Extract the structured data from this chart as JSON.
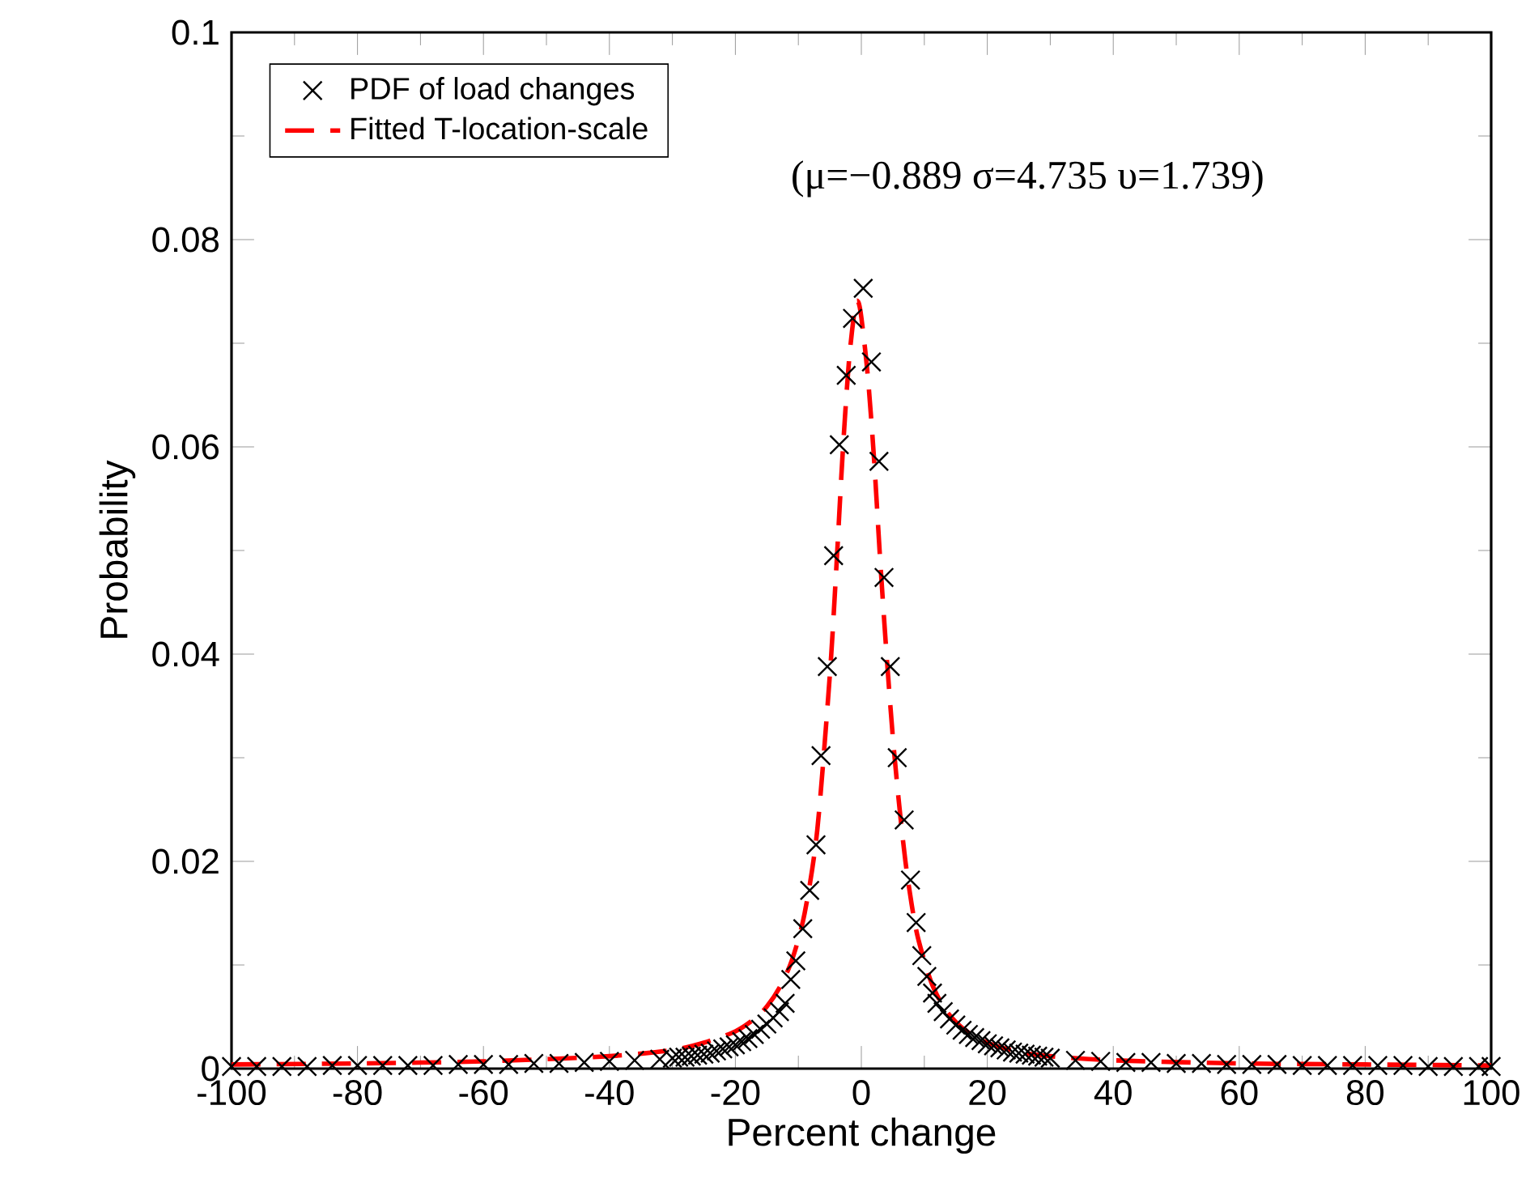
{
  "chart_data": {
    "type": "scatter",
    "xlabel": "Percent change",
    "ylabel": "Probability",
    "xlim": [
      -100,
      100
    ],
    "ylim": [
      0,
      0.1
    ],
    "xticks": [
      -100,
      -80,
      -60,
      -40,
      -20,
      0,
      20,
      40,
      60,
      80,
      100
    ],
    "yticks": [
      0,
      0.02,
      0.04,
      0.06,
      0.08,
      0.1
    ],
    "grid": false,
    "legend": "top left",
    "annotations": [
      "(μ=−0.889 σ=4.735 υ=1.739)"
    ],
    "series": [
      {
        "name": "PDF of load changes",
        "marker": "cross",
        "color": "#000000",
        "x": [
          -100,
          -96,
          -92,
          -88,
          -84,
          -80,
          -76,
          -72,
          -68,
          -64,
          -60,
          -56,
          -52,
          -48,
          -44,
          -40,
          -36,
          -32,
          -30,
          -29,
          -28,
          -27,
          -26,
          -25,
          -24,
          -23,
          -22,
          -21,
          -20,
          -19,
          -18,
          -17,
          -16,
          -15,
          -14,
          -13,
          -12.1,
          -11.2,
          -10.4,
          -9.3,
          -8.2,
          -7.2,
          -6.4,
          -5.4,
          -4.4,
          -3.5,
          -2.4,
          -1.4,
          0.3,
          1.6,
          2.8,
          3.6,
          4.6,
          5.7,
          6.8,
          7.8,
          8.7,
          9.6,
          10.4,
          11.3,
          12,
          13,
          14,
          15,
          16,
          17,
          18,
          19,
          20,
          21,
          22,
          23,
          24,
          25,
          26,
          27,
          28,
          29,
          30,
          34,
          38,
          42,
          46,
          50,
          54,
          58,
          62,
          66,
          70,
          74,
          78,
          82,
          86,
          90,
          94,
          98,
          100
        ],
        "values": [
          0.0002,
          0.0002,
          0.0002,
          0.0002,
          0.0003,
          0.0003,
          0.0003,
          0.0003,
          0.0003,
          0.0004,
          0.0004,
          0.0004,
          0.0005,
          0.0005,
          0.0006,
          0.0007,
          0.0008,
          0.0009,
          0.001,
          0.0011,
          0.0011,
          0.0012,
          0.0013,
          0.0014,
          0.0015,
          0.0017,
          0.0019,
          0.0021,
          0.0023,
          0.0026,
          0.0029,
          0.0033,
          0.0038,
          0.0043,
          0.0049,
          0.0055,
          0.0063,
          0.0086,
          0.0104,
          0.0135,
          0.0172,
          0.0216,
          0.0302,
          0.0388,
          0.0495,
          0.0602,
          0.0669,
          0.0724,
          0.0753,
          0.0682,
          0.0586,
          0.0474,
          0.0388,
          0.03,
          0.024,
          0.0182,
          0.0141,
          0.0109,
          0.0089,
          0.0073,
          0.0063,
          0.0055,
          0.0048,
          0.0042,
          0.0037,
          0.0033,
          0.003,
          0.0027,
          0.0024,
          0.0022,
          0.002,
          0.0018,
          0.0016,
          0.0015,
          0.0014,
          0.0013,
          0.0012,
          0.0011,
          0.001,
          0.0008,
          0.0007,
          0.0006,
          0.0006,
          0.0005,
          0.0005,
          0.0004,
          0.0004,
          0.0004,
          0.0003,
          0.0003,
          0.0003,
          0.0003,
          0.0003,
          0.0002,
          0.0002,
          0.0002,
          0.0002
        ]
      },
      {
        "name": "Fitted T-location-scale",
        "type": "line",
        "marker": "none",
        "line_style": "dashed",
        "color": "#ff0000",
        "x": [
          -100,
          -80,
          -60,
          -40,
          -30,
          -25,
          -20,
          -17,
          -15,
          -13,
          -11,
          -9,
          -7,
          -5,
          -4,
          -3,
          -2,
          -1,
          -0.5,
          0,
          1,
          2,
          3,
          4,
          5,
          6,
          7,
          8,
          9,
          11,
          13,
          15,
          17,
          20,
          25,
          30,
          40,
          60,
          80,
          100
        ],
        "values": [
          0.0004,
          0.0005,
          0.0007,
          0.0012,
          0.0018,
          0.0025,
          0.0036,
          0.0048,
          0.006,
          0.0078,
          0.0105,
          0.015,
          0.023,
          0.038,
          0.048,
          0.059,
          0.068,
          0.0735,
          0.074,
          0.0725,
          0.067,
          0.059,
          0.049,
          0.04,
          0.032,
          0.0255,
          0.02,
          0.0158,
          0.0126,
          0.0085,
          0.006,
          0.0045,
          0.0035,
          0.0025,
          0.0016,
          0.0012,
          0.0008,
          0.0005,
          0.0004,
          0.0003
        ]
      }
    ]
  }
}
